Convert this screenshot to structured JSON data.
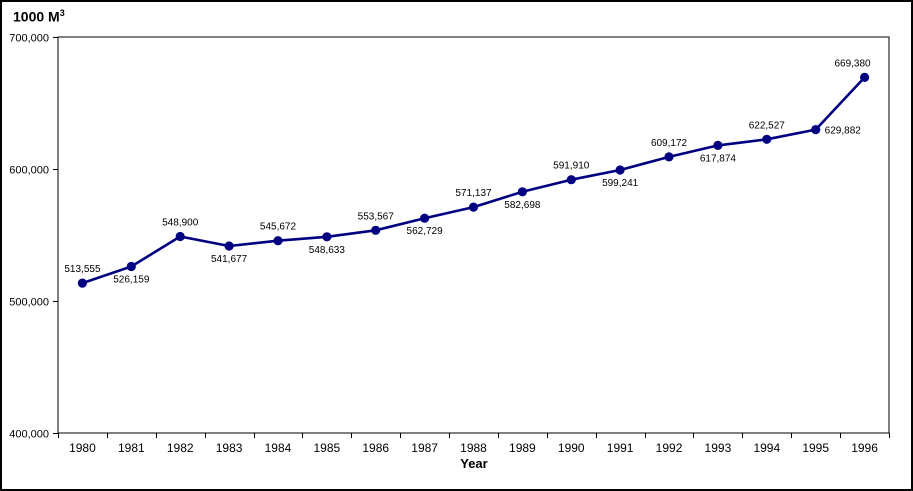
{
  "chart_data": {
    "type": "line",
    "title": "",
    "ylabel_text": "1000 M",
    "ylabel_sup": "3",
    "xlabel": "Year",
    "ylim": [
      400000,
      700000
    ],
    "ytick_step": 100000,
    "ytick_labels": [
      "400,000",
      "500,000",
      "600,000",
      "700,000"
    ],
    "categories": [
      "1980",
      "1981",
      "1982",
      "1983",
      "1984",
      "1985",
      "1986",
      "1987",
      "1988",
      "1989",
      "1990",
      "1991",
      "1992",
      "1993",
      "1994",
      "1995",
      "1996"
    ],
    "grid": false,
    "legend": false,
    "background": "#ffffff",
    "axis_color": "#000000",
    "series": [
      {
        "name": "annual-volume",
        "color": "#000080",
        "values": [
          513555,
          526159,
          548900,
          541677,
          545672,
          548633,
          553567,
          562729,
          571137,
          582698,
          591910,
          599241,
          609172,
          617874,
          622527,
          629882,
          669380
        ],
        "point_labels": [
          "513,555",
          "526,159",
          "548,900",
          "541,677",
          "545,672",
          "548,633",
          "553,567",
          "562,729",
          "571,137",
          "582,698",
          "591,910",
          "599,241",
          "609,172",
          "617,874",
          "622,527",
          "629,882",
          "669,380"
        ],
        "label_positions": [
          "above",
          "below",
          "above",
          "below",
          "above",
          "below",
          "above",
          "below",
          "above",
          "below",
          "above",
          "below",
          "above",
          "below",
          "above",
          "right",
          "above-left"
        ]
      }
    ]
  }
}
